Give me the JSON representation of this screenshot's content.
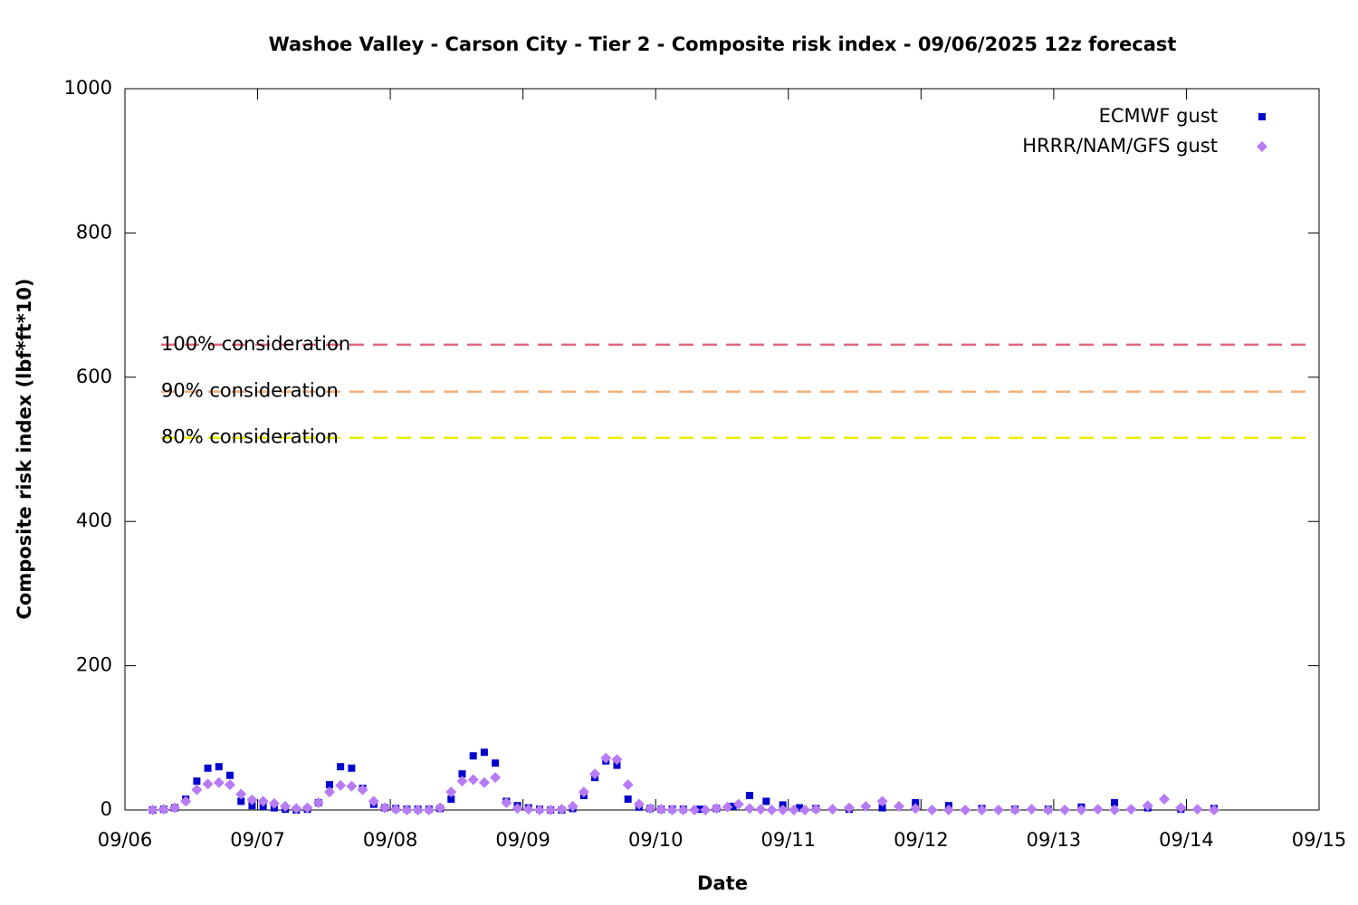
{
  "chart_data": {
    "type": "scatter",
    "title": "Washoe Valley - Carson City - Tier 2 - Composite risk index - 09/06/2025 12z forecast",
    "x_label": "Date",
    "y_label": "Composite risk index (lbf*ft*10)",
    "xlim": [
      0,
      216
    ],
    "xticks": [
      {
        "value": 0,
        "label": "09/06"
      },
      {
        "value": 24,
        "label": "09/07"
      },
      {
        "value": 48,
        "label": "09/08"
      },
      {
        "value": 72,
        "label": "09/09"
      },
      {
        "value": 96,
        "label": "09/10"
      },
      {
        "value": 120,
        "label": "09/11"
      },
      {
        "value": 144,
        "label": "09/12"
      },
      {
        "value": 168,
        "label": "09/13"
      },
      {
        "value": 192,
        "label": "09/14"
      },
      {
        "value": 216,
        "label": "09/15"
      }
    ],
    "ylim": [
      0,
      1000
    ],
    "yticks": [
      0,
      200,
      400,
      600,
      800,
      1000
    ],
    "legend": "top-right",
    "thresholds": [
      {
        "label": "100% consideration",
        "value": 645,
        "color": "#e0677c"
      },
      {
        "label": "90% consideration",
        "value": 580,
        "color": "#f2b07a"
      },
      {
        "label": "80% consideration",
        "value": 516,
        "color": "#eeee00"
      }
    ],
    "series": [
      {
        "name": "ECMWF gust",
        "color": "#0000cc",
        "marker": "square",
        "x": [
          5,
          7,
          9,
          11,
          13,
          15,
          17,
          19,
          21,
          23,
          25,
          27,
          29,
          31,
          33,
          35,
          37,
          39,
          41,
          43,
          45,
          47,
          49,
          51,
          53,
          55,
          57,
          59,
          61,
          63,
          65,
          67,
          69,
          71,
          73,
          75,
          77,
          79,
          81,
          83,
          85,
          87,
          89,
          91,
          93,
          95,
          97,
          99,
          101,
          104,
          107,
          110,
          113,
          116,
          119,
          122,
          125,
          131,
          137,
          143,
          149,
          155,
          161,
          167,
          173,
          179,
          185,
          191,
          197
        ],
        "values": [
          0,
          1,
          3,
          15,
          40,
          58,
          60,
          48,
          12,
          6,
          5,
          3,
          1,
          0,
          1,
          10,
          35,
          60,
          58,
          30,
          8,
          3,
          2,
          1,
          1,
          1,
          2,
          15,
          50,
          75,
          80,
          65,
          12,
          6,
          3,
          1,
          0,
          0,
          2,
          20,
          45,
          68,
          62,
          15,
          4,
          2,
          1,
          1,
          1,
          1,
          2,
          5,
          20,
          12,
          7,
          3,
          2,
          1,
          3,
          10,
          6,
          2,
          1,
          1,
          4,
          10,
          3,
          1,
          2
        ]
      },
      {
        "name": "HRRR/NAM/GFS gust",
        "color": "#b77cf5",
        "marker": "diamond",
        "x": [
          5,
          7,
          9,
          11,
          13,
          15,
          17,
          19,
          21,
          23,
          25,
          27,
          29,
          31,
          33,
          35,
          37,
          39,
          41,
          43,
          45,
          47,
          49,
          51,
          53,
          55,
          57,
          59,
          61,
          63,
          65,
          67,
          69,
          71,
          73,
          75,
          77,
          79,
          81,
          83,
          85,
          87,
          89,
          91,
          93,
          95,
          97,
          99,
          101,
          103,
          105,
          107,
          109,
          111,
          113,
          115,
          117,
          119,
          121,
          123,
          125,
          128,
          131,
          134,
          137,
          140,
          143,
          146,
          149,
          152,
          155,
          158,
          161,
          164,
          167,
          170,
          173,
          176,
          179,
          182,
          185,
          188,
          191,
          194,
          197
        ],
        "values": [
          0,
          1,
          3,
          12,
          28,
          36,
          38,
          35,
          22,
          14,
          12,
          9,
          5,
          2,
          3,
          10,
          25,
          34,
          33,
          28,
          12,
          3,
          1,
          0,
          0,
          0,
          3,
          25,
          40,
          42,
          38,
          45,
          10,
          2,
          1,
          0,
          0,
          1,
          5,
          25,
          50,
          72,
          70,
          35,
          8,
          2,
          1,
          0,
          0,
          0,
          0,
          2,
          4,
          8,
          2,
          1,
          0,
          0,
          0,
          0,
          1,
          1,
          3,
          5,
          12,
          5,
          2,
          0,
          0,
          0,
          0,
          0,
          0,
          1,
          0,
          0,
          0,
          1,
          0,
          1,
          6,
          15,
          3,
          1,
          0
        ]
      }
    ]
  }
}
